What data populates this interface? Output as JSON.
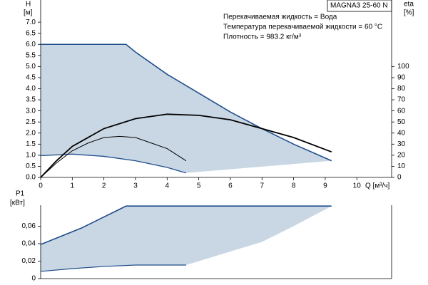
{
  "chart_data": [
    {
      "type": "line",
      "title": "MAGNA3 25-60 N",
      "annotations": [
        "Перекачиваемая жидкость = Вода",
        "Температура перекачиваемой жидкости = 60 °C",
        "Плотность = 983.2 кг/м³"
      ],
      "ylabel": "H",
      "yunit": "[м]",
      "y2label": "eta",
      "y2unit": "[%]",
      "xlabel": "Q [м³/ч]",
      "xlim": [
        0,
        11.1
      ],
      "xticks": [
        0,
        1,
        2,
        3,
        4,
        5,
        6,
        7,
        8,
        9,
        10
      ],
      "ylim": [
        0,
        8
      ],
      "yticks": [
        {
          "value": 0,
          "label": "0.0"
        },
        {
          "value": 0.5,
          "label": "0.5"
        },
        {
          "value": 1,
          "label": "1.0"
        },
        {
          "value": 1.5,
          "label": "1.5"
        },
        {
          "value": 2,
          "label": "2.0"
        },
        {
          "value": 2.5,
          "label": "2.5"
        },
        {
          "value": 3,
          "label": "3.0"
        },
        {
          "value": 3.5,
          "label": "3.5"
        },
        {
          "value": 4,
          "label": "4.0"
        },
        {
          "value": 4.5,
          "label": "4.5"
        },
        {
          "value": 5,
          "label": "5.0"
        },
        {
          "value": 5.5,
          "label": "5.5"
        },
        {
          "value": 6,
          "label": "6.0"
        },
        {
          "value": 6.5,
          "label": "6.5"
        },
        {
          "value": 7,
          "label": "7.0"
        }
      ],
      "y2lim": [
        0,
        160
      ],
      "y2ticks": [
        0,
        10,
        20,
        30,
        40,
        50,
        60,
        70,
        80,
        90,
        100
      ],
      "area": {
        "color": "#c9d7e4",
        "x": [
          0,
          2.7,
          3,
          4,
          5,
          6,
          7,
          8,
          9.2,
          4.6,
          4,
          3,
          2,
          1,
          0
        ],
        "values": [
          6.0,
          6.0,
          5.65,
          4.65,
          3.8,
          2.95,
          2.2,
          1.5,
          0.75,
          0.2,
          0.45,
          0.75,
          0.95,
          1.05,
          0.98
        ]
      },
      "series": [
        {
          "color": "#1f4e8c",
          "width": 1.6,
          "x": [
            0,
            2.7,
            3,
            4,
            5,
            6,
            7,
            8,
            9.2
          ],
          "values": [
            6.0,
            6.0,
            5.65,
            4.65,
            3.8,
            2.95,
            2.2,
            1.5,
            0.75
          ]
        },
        {
          "color": "#1f4e8c",
          "width": 1.3,
          "x": [
            0,
            1,
            2,
            3,
            4,
            4.6
          ],
          "values": [
            0.98,
            1.05,
            0.95,
            0.75,
            0.45,
            0.2
          ]
        },
        {
          "color": "#000000",
          "width": 1.8,
          "axis": "y2",
          "x": [
            0,
            0.5,
            1,
            2,
            3,
            4,
            5,
            6,
            7,
            8,
            9.2
          ],
          "values": [
            0,
            15,
            28,
            44,
            53,
            57,
            56,
            52,
            44,
            36,
            23
          ]
        },
        {
          "color": "#000000",
          "width": 1,
          "axis": "y2",
          "x": [
            0,
            0.5,
            1,
            1.5,
            2,
            2.5,
            3,
            3.5,
            4,
            4.6
          ],
          "values": [
            0,
            13,
            24,
            31,
            36,
            37,
            36,
            31,
            26,
            15
          ]
        }
      ]
    },
    {
      "type": "line",
      "ylabel": "P1",
      "yunit": "[кВт]",
      "xlim": [
        0,
        11.1
      ],
      "ylim": [
        0,
        0.084
      ],
      "yticks": [
        0,
        {
          "value": 0.02,
          "label": "0,02"
        },
        {
          "value": 0.04,
          "label": "0,04"
        },
        {
          "value": 0.06,
          "label": "0,06"
        }
      ],
      "area": {
        "color": "#c9d7e4",
        "x": [
          0,
          1.3,
          2.7,
          9.2,
          8,
          7,
          6,
          4.6,
          4,
          3,
          2,
          1,
          0
        ],
        "values": [
          0.039,
          0.058,
          0.083,
          0.083,
          0.06,
          0.042,
          0.031,
          0.0155,
          0.0155,
          0.0155,
          0.0139,
          0.0114,
          0.0082
        ]
      },
      "series": [
        {
          "color": "#1f4e8c",
          "width": 1.6,
          "x": [
            0,
            1.3,
            2.7,
            9.2
          ],
          "values": [
            0.039,
            0.058,
            0.083,
            0.083
          ]
        },
        {
          "color": "#1f4e8c",
          "width": 1.2,
          "x": [
            0,
            1,
            2,
            3,
            4,
            4.6
          ],
          "values": [
            0.0082,
            0.0114,
            0.0139,
            0.0155,
            0.0155,
            0.0155
          ]
        }
      ]
    }
  ]
}
